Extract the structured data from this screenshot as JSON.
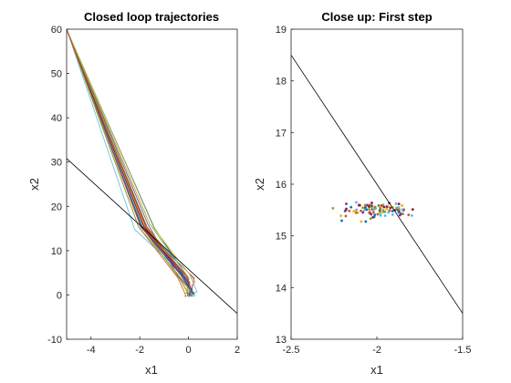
{
  "chart_data": [
    {
      "type": "line",
      "title": "Closed loop trajectories",
      "xlabel": "x1",
      "ylabel": "x2",
      "xlim": [
        -5,
        2
      ],
      "ylim": [
        -10,
        60
      ],
      "xticks": [
        -4,
        -2,
        0,
        2
      ],
      "yticks": [
        -10,
        0,
        10,
        20,
        30,
        40,
        50,
        60
      ],
      "grid": false,
      "reference_line": {
        "x": [
          -5,
          2
        ],
        "y": [
          30.8,
          -4.2
        ]
      },
      "trajectory_count": 30,
      "trajectory_template": {
        "x": [
          -5.0,
          -1.9,
          -0.1,
          0.1
        ],
        "y": [
          60.0,
          15.5,
          4.0,
          0.5
        ]
      },
      "trajectory_spread": {
        "x": [
          0,
          0.35,
          0.35,
          0.2
        ],
        "y": [
          0,
          1.0,
          1.8,
          0.8
        ]
      }
    },
    {
      "type": "scatter",
      "title": "Close up: First step",
      "xlabel": "x1",
      "ylabel": "x2",
      "xlim": [
        -2.5,
        -1.5
      ],
      "ylim": [
        13,
        19
      ],
      "xticks": [
        -2.5,
        -2,
        -1.5
      ],
      "yticks": [
        13,
        14,
        15,
        16,
        17,
        18,
        19
      ],
      "grid": false,
      "reference_line": {
        "x": [
          -2.5,
          -1.5
        ],
        "y": [
          18.5,
          13.5
        ]
      },
      "point_count": 100,
      "point_center": {
        "x": -2.0,
        "y": 15.5
      },
      "point_spread": {
        "x": 0.18,
        "y": 0.12
      }
    }
  ],
  "series_colors": [
    "#0072BD",
    "#D95319",
    "#EDB120",
    "#7E2F8E",
    "#77AC30",
    "#4DBEEE",
    "#A2142F"
  ]
}
